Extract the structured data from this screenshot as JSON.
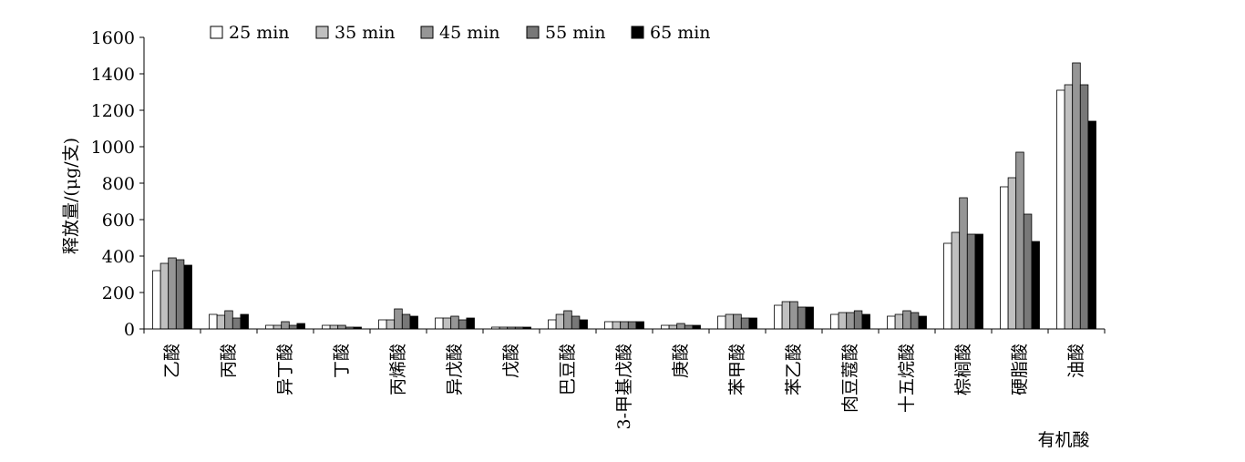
{
  "chart_data": {
    "type": "bar",
    "title": "",
    "ylabel": "释放量/(μg/支)",
    "xlabel": "有机酸",
    "ylim": [
      0,
      1600
    ],
    "yticks": [
      0,
      200,
      400,
      600,
      800,
      1000,
      1200,
      1400,
      1600
    ],
    "grid": false,
    "legend_position": "top",
    "categories": [
      "乙酸",
      "丙酸",
      "异丁酸",
      "丁酸",
      "丙烯酸",
      "异戊酸",
      "戊酸",
      "巴豆酸",
      "3-甲基戊酸",
      "庚酸",
      "苯甲酸",
      "苯乙酸",
      "肉豆蔻酸",
      "十五烷酸",
      "棕榈酸",
      "硬脂酸",
      "油酸"
    ],
    "series": [
      {
        "name": "25 min",
        "color": "#ffffff",
        "values": [
          320,
          80,
          20,
          20,
          50,
          60,
          10,
          50,
          40,
          20,
          70,
          130,
          80,
          70,
          470,
          780,
          1310
        ]
      },
      {
        "name": "35 min",
        "color": "#c0c0c0",
        "values": [
          360,
          75,
          20,
          20,
          50,
          60,
          10,
          80,
          40,
          20,
          80,
          150,
          90,
          80,
          530,
          830,
          1340
        ]
      },
      {
        "name": "45 min",
        "color": "#969696",
        "values": [
          390,
          100,
          40,
          20,
          110,
          70,
          10,
          100,
          40,
          30,
          80,
          150,
          90,
          100,
          720,
          970,
          1460
        ]
      },
      {
        "name": "55 min",
        "color": "#787878",
        "values": [
          380,
          60,
          20,
          10,
          80,
          50,
          10,
          70,
          40,
          20,
          60,
          120,
          100,
          90,
          520,
          630,
          1340
        ]
      },
      {
        "name": "65 min",
        "color": "#000000",
        "values": [
          350,
          80,
          30,
          10,
          70,
          60,
          10,
          50,
          40,
          20,
          60,
          120,
          80,
          70,
          520,
          480,
          1140
        ]
      }
    ]
  }
}
